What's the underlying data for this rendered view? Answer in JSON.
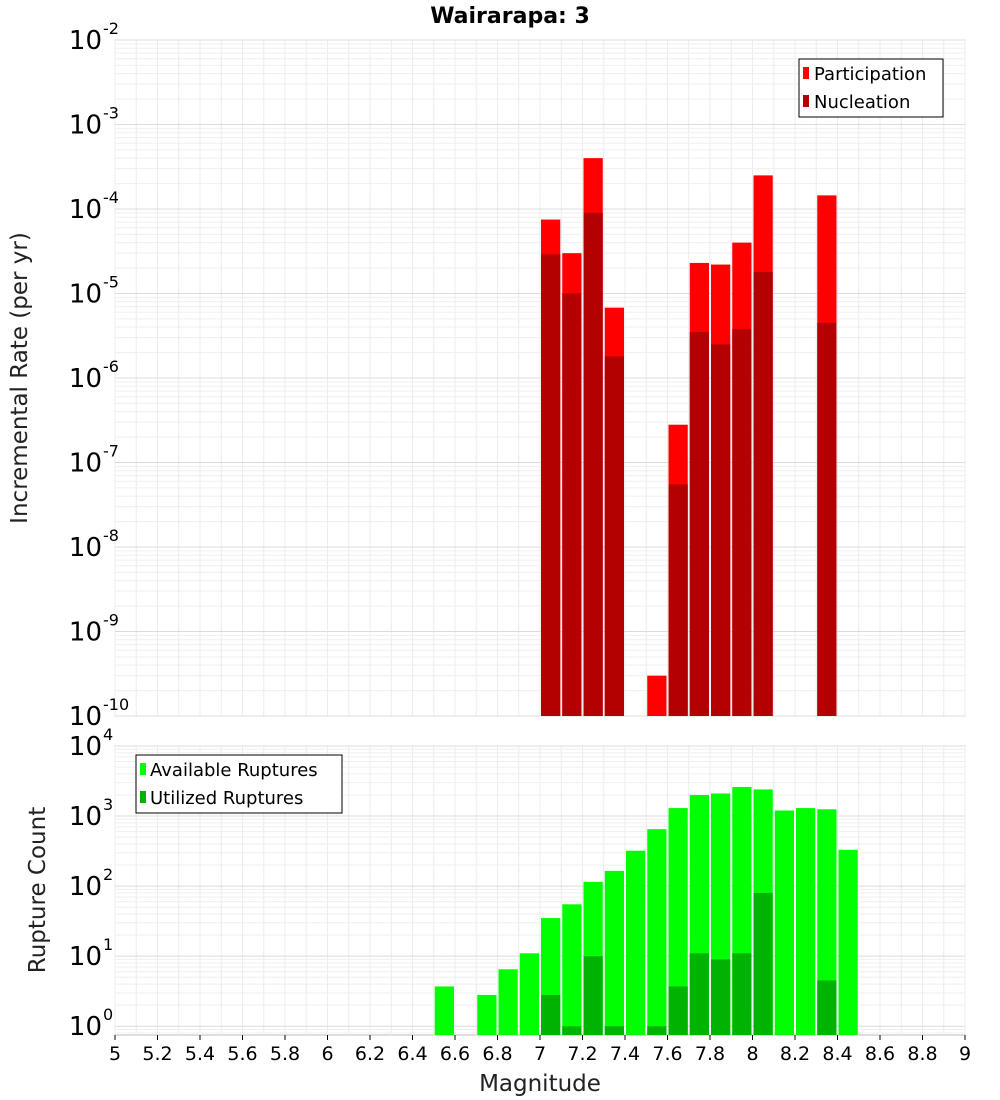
{
  "chart_data": [
    {
      "type": "bar",
      "title": "Wairarapa: 3",
      "xlabel": "",
      "ylabel": "Incremental Rate (per yr)",
      "x_range": [
        5,
        9
      ],
      "ylim": [
        1e-10,
        0.01
      ],
      "y_scale": "log",
      "y_tick_exponents": [
        -10,
        -9,
        -8,
        -7,
        -6,
        -5,
        -4,
        -3,
        -2
      ],
      "grid": true,
      "legend_placement": "top-right",
      "bin_width": 0.1,
      "series": [
        {
          "name": "Participation",
          "color": "#ff0000",
          "x": [
            7.05,
            7.15,
            7.25,
            7.35,
            7.55,
            7.65,
            7.75,
            7.85,
            7.95,
            8.05,
            8.35
          ],
          "values": [
            7.5e-05,
            3e-05,
            0.0004,
            6.8e-06,
            3e-10,
            2.8e-07,
            2.3e-05,
            2.2e-05,
            4e-05,
            0.00025,
            0.000145
          ]
        },
        {
          "name": "Nucleation",
          "color": "#b30000",
          "x": [
            7.05,
            7.15,
            7.25,
            7.35,
            7.65,
            7.75,
            7.85,
            7.95,
            8.05,
            8.35
          ],
          "values": [
            2.9e-05,
            1e-05,
            9e-05,
            1.8e-06,
            5.5e-08,
            3.5e-06,
            2.5e-06,
            3.8e-06,
            1.8e-05,
            4.5e-06
          ]
        }
      ]
    },
    {
      "type": "bar",
      "xlabel": "Magnitude",
      "ylabel": "Rupture Count",
      "x_range": [
        5,
        9
      ],
      "x_ticks": [
        "5",
        "5.2",
        "5.4",
        "5.6",
        "5.8",
        "6",
        "6.2",
        "6.4",
        "6.6",
        "6.8",
        "7",
        "7.2",
        "7.4",
        "7.6",
        "7.8",
        "8",
        "8.2",
        "8.4",
        "8.6",
        "8.8",
        "9"
      ],
      "ylim": [
        0.75,
        10000
      ],
      "y_scale": "log",
      "y_tick_exponents": [
        0,
        1,
        2,
        3,
        4
      ],
      "grid": true,
      "legend_placement": "top-left",
      "bin_width": 0.1,
      "series": [
        {
          "name": "Available Ruptures",
          "color": "#00ff00",
          "x": [
            6.55,
            6.75,
            6.85,
            6.95,
            7.05,
            7.15,
            7.25,
            7.35,
            7.45,
            7.55,
            7.65,
            7.75,
            7.85,
            7.95,
            8.05,
            8.15,
            8.25,
            8.35,
            8.45
          ],
          "values": [
            3.7,
            2.8,
            6.5,
            11,
            35,
            55,
            115,
            165,
            320,
            650,
            1300,
            2000,
            2100,
            2600,
            2400,
            1200,
            1300,
            1250,
            330
          ]
        },
        {
          "name": "Utilized Ruptures",
          "color": "#00b300",
          "x": [
            7.05,
            7.15,
            7.25,
            7.35,
            7.55,
            7.65,
            7.75,
            7.85,
            7.95,
            8.05,
            8.35
          ],
          "values": [
            2.8,
            1,
            10,
            1,
            1,
            3.7,
            11,
            9,
            11,
            80,
            4.5
          ]
        }
      ]
    }
  ]
}
